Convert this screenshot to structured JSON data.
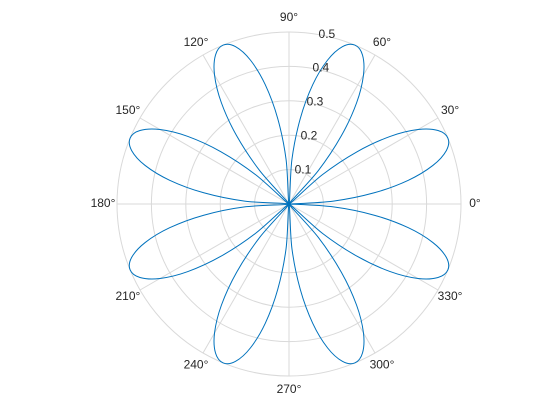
{
  "chart_data": {
    "type": "polar",
    "theta": [
      0,
      3.75,
      7.5,
      11.25,
      15,
      18.75,
      22.5,
      26.25,
      30,
      33.75,
      37.5,
      41.25,
      45,
      48.75,
      52.5,
      56.25,
      60,
      63.75,
      67.5,
      71.25,
      75,
      78.75,
      82.5,
      86.25,
      90,
      93.75,
      97.5,
      101.25,
      105,
      108.75,
      112.5,
      116.25,
      120,
      123.75,
      127.5,
      131.25,
      135,
      138.75,
      142.5,
      146.25,
      150,
      153.75,
      157.5,
      161.25,
      165,
      168.75,
      172.5,
      176.25,
      180,
      183.75,
      187.5,
      191.25,
      195,
      198.75,
      202.5,
      206.25,
      210,
      213.75,
      217.5,
      221.25,
      225,
      228.75,
      232.5,
      236.25,
      240,
      243.75,
      247.5,
      251.25,
      255,
      258.75,
      262.5,
      266.25,
      270,
      273.75,
      277.5,
      281.25,
      285,
      288.75,
      292.5,
      296.25,
      300,
      303.75,
      307.5,
      311.25,
      315,
      318.75,
      322.5,
      326.25,
      330,
      333.75,
      337.5,
      341.25,
      345,
      348.75,
      352.5,
      356.25,
      360
    ],
    "r": [
      0,
      0.1294,
      0.25,
      0.3536,
      0.433,
      0.483,
      0.5,
      0.483,
      0.433,
      0.3536,
      0.25,
      0.1294,
      0,
      0.1294,
      0.25,
      0.3536,
      0.433,
      0.483,
      0.5,
      0.483,
      0.433,
      0.3536,
      0.25,
      0.1294,
      0,
      0.1294,
      0.25,
      0.3536,
      0.433,
      0.483,
      0.5,
      0.483,
      0.433,
      0.3536,
      0.25,
      0.1294,
      0,
      0.1294,
      0.25,
      0.3536,
      0.433,
      0.483,
      0.5,
      0.483,
      0.433,
      0.3536,
      0.25,
      0.1294,
      0,
      0.1294,
      0.25,
      0.3536,
      0.433,
      0.483,
      0.5,
      0.483,
      0.433,
      0.3536,
      0.25,
      0.1294,
      0,
      0.1294,
      0.25,
      0.3536,
      0.433,
      0.483,
      0.5,
      0.483,
      0.433,
      0.3536,
      0.25,
      0.1294,
      0,
      0.1294,
      0.25,
      0.3536,
      0.433,
      0.483,
      0.5,
      0.483,
      0.433,
      0.3536,
      0.25,
      0.1294,
      0,
      0.1294,
      0.25,
      0.3536,
      0.433,
      0.483,
      0.5,
      0.483,
      0.433,
      0.3536,
      0.25,
      0.1294,
      0
    ],
    "color": "#0072bd",
    "rlim": [
      0,
      0.5
    ],
    "rticks": [
      0.1,
      0.2,
      0.3,
      0.4,
      0.5
    ],
    "thetaticks": [
      {
        "value": 0,
        "label": "0°"
      },
      {
        "value": 30,
        "label": "30°"
      },
      {
        "value": 60,
        "label": "60°"
      },
      {
        "value": 90,
        "label": "90°"
      },
      {
        "value": 120,
        "label": "120°"
      },
      {
        "value": 150,
        "label": "150°"
      },
      {
        "value": 180,
        "label": "180°"
      },
      {
        "value": 210,
        "label": "210°"
      },
      {
        "value": 240,
        "label": "240°"
      },
      {
        "value": 270,
        "label": "270°"
      },
      {
        "value": 300,
        "label": "300°"
      },
      {
        "value": 330,
        "label": "330°"
      }
    ],
    "grid": true
  }
}
